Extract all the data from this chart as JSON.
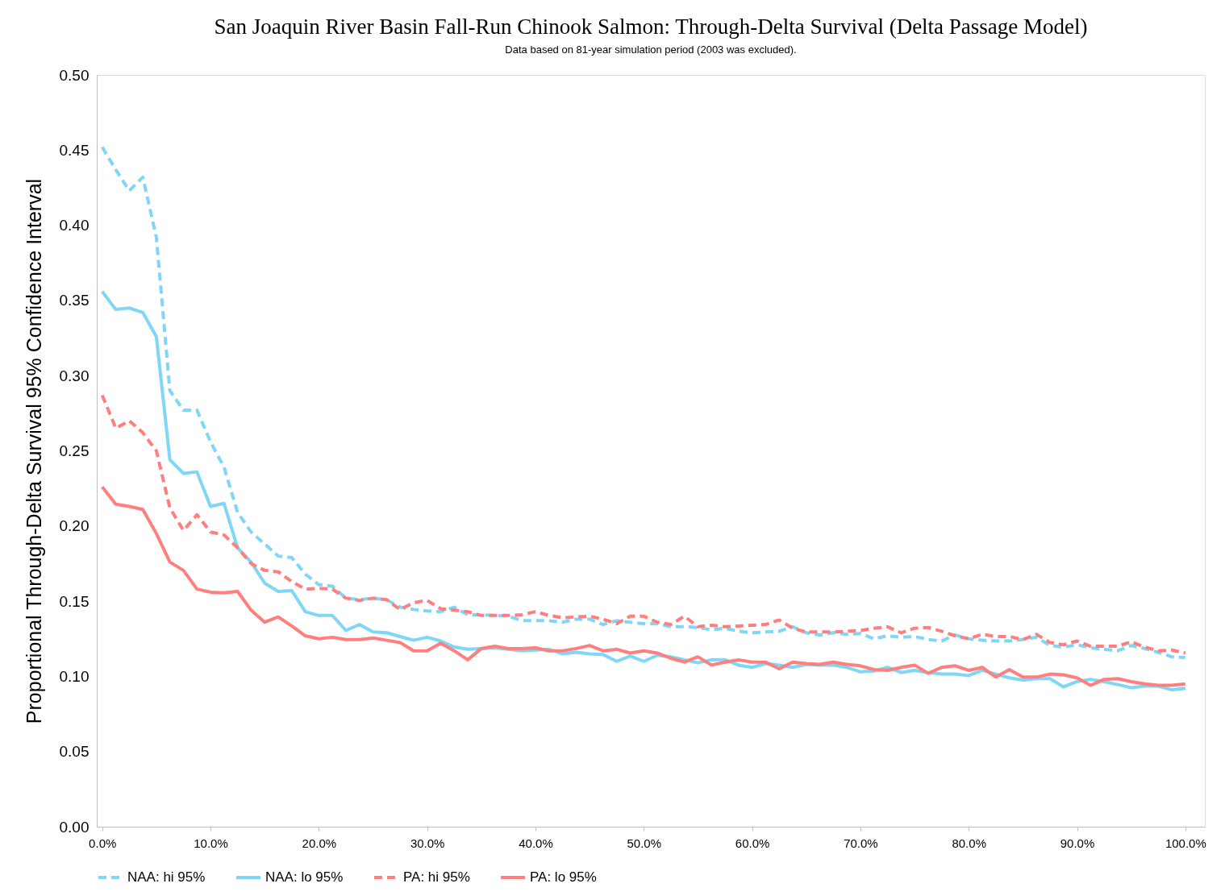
{
  "chart_data": {
    "type": "line",
    "title": "San Joaquin River Basin Fall-Run Chinook Salmon: Through-Delta Survival (Delta Passage Model)",
    "subtitle": "Data based on 81-year simulation period (2003 was excluded).",
    "ylabel": "Proportional Through-Delta Survival 95% Confidence Interval",
    "x": [
      0,
      1.25,
      2.5,
      3.75,
      5,
      6.25,
      7.5,
      8.75,
      10,
      11.25,
      12.5,
      13.75,
      15,
      16.25,
      17.5,
      18.75,
      20,
      21.25,
      22.5,
      23.75,
      25,
      26.25,
      27.5,
      28.75,
      30,
      31.25,
      32.5,
      33.75,
      35,
      36.25,
      37.5,
      38.75,
      40,
      41.25,
      42.5,
      43.75,
      45,
      46.25,
      47.5,
      48.75,
      50,
      51.25,
      52.5,
      53.75,
      55,
      56.25,
      57.5,
      58.75,
      60,
      61.25,
      62.5,
      63.75,
      65,
      66.25,
      67.5,
      68.75,
      70,
      71.25,
      72.5,
      73.75,
      75,
      76.25,
      77.5,
      78.75,
      80,
      81.25,
      82.5,
      83.75,
      85,
      86.25,
      87.5,
      88.75,
      90,
      91.25,
      92.5,
      93.75,
      95,
      96.25,
      97.5,
      98.75,
      100
    ],
    "series": [
      {
        "name": "NAA: hi 95%",
        "color": "#7fd6f5",
        "line_style": "dashed",
        "values": [
          0.452,
          0.437,
          0.423,
          0.432,
          0.392,
          0.29,
          0.277,
          0.277,
          0.256,
          0.239,
          0.209,
          0.196,
          0.188,
          0.18,
          0.179,
          0.168,
          0.161,
          0.16,
          0.152,
          0.151,
          0.152,
          0.151,
          0.146,
          0.1445,
          0.1435,
          0.143,
          0.146,
          0.141,
          0.141,
          0.1405,
          0.14,
          0.137,
          0.137,
          0.137,
          0.136,
          0.138,
          0.138,
          0.1345,
          0.137,
          0.136,
          0.135,
          0.135,
          0.133,
          0.133,
          0.1325,
          0.131,
          0.132,
          0.13,
          0.129,
          0.1295,
          0.13,
          0.133,
          0.129,
          0.1275,
          0.129,
          0.128,
          0.1285,
          0.125,
          0.127,
          0.126,
          0.1265,
          0.1245,
          0.1235,
          0.1275,
          0.125,
          0.124,
          0.1235,
          0.1235,
          0.1245,
          0.126,
          0.1205,
          0.1195,
          0.121,
          0.119,
          0.118,
          0.117,
          0.1205,
          0.1185,
          0.116,
          0.113,
          0.1125
        ]
      },
      {
        "name": "NAA: lo 95%",
        "color": "#7fd6f5",
        "line_style": "solid",
        "values": [
          0.356,
          0.344,
          0.345,
          0.342,
          0.326,
          0.244,
          0.235,
          0.236,
          0.213,
          0.215,
          0.1855,
          0.176,
          0.162,
          0.1565,
          0.157,
          0.143,
          0.1405,
          0.1405,
          0.1305,
          0.1345,
          0.1295,
          0.129,
          0.1265,
          0.124,
          0.126,
          0.1235,
          0.1195,
          0.118,
          0.1185,
          0.119,
          0.118,
          0.117,
          0.1175,
          0.118,
          0.115,
          0.116,
          0.115,
          0.1145,
          0.11,
          0.1135,
          0.11,
          0.114,
          0.113,
          0.111,
          0.109,
          0.111,
          0.111,
          0.1075,
          0.106,
          0.1085,
          0.1075,
          0.106,
          0.108,
          0.1075,
          0.1075,
          0.106,
          0.103,
          0.1035,
          0.106,
          0.1025,
          0.104,
          0.1025,
          0.1015,
          0.1015,
          0.1005,
          0.104,
          0.1015,
          0.099,
          0.0975,
          0.0985,
          0.0985,
          0.093,
          0.0965,
          0.098,
          0.0965,
          0.0945,
          0.0925,
          0.0935,
          0.0935,
          0.091,
          0.092
        ]
      },
      {
        "name": "PA: hi 95%",
        "color": "#ff7f7f",
        "line_style": "dashed",
        "values": [
          0.287,
          0.265,
          0.27,
          0.262,
          0.25,
          0.212,
          0.197,
          0.2075,
          0.196,
          0.194,
          0.1855,
          0.175,
          0.1705,
          0.1695,
          0.163,
          0.158,
          0.1585,
          0.158,
          0.152,
          0.1505,
          0.152,
          0.151,
          0.1445,
          0.149,
          0.1505,
          0.145,
          0.144,
          0.143,
          0.1405,
          0.1405,
          0.1405,
          0.141,
          0.143,
          0.1405,
          0.139,
          0.1395,
          0.14,
          0.138,
          0.135,
          0.14,
          0.14,
          0.136,
          0.1345,
          0.14,
          0.133,
          0.134,
          0.133,
          0.1335,
          0.134,
          0.1345,
          0.1375,
          0.132,
          0.1295,
          0.1295,
          0.1295,
          0.13,
          0.1305,
          0.132,
          0.133,
          0.129,
          0.132,
          0.1325,
          0.13,
          0.127,
          0.125,
          0.128,
          0.1265,
          0.1265,
          0.1245,
          0.128,
          0.1225,
          0.121,
          0.1235,
          0.12,
          0.12,
          0.12,
          0.123,
          0.1195,
          0.117,
          0.1175,
          0.1155
        ]
      },
      {
        "name": "PA: lo 95%",
        "color": "#ff7f7f",
        "line_style": "solid",
        "values": [
          0.226,
          0.2145,
          0.213,
          0.211,
          0.195,
          0.176,
          0.1705,
          0.158,
          0.156,
          0.1555,
          0.1565,
          0.144,
          0.136,
          0.1395,
          0.1335,
          0.127,
          0.125,
          0.126,
          0.1245,
          0.1245,
          0.1255,
          0.124,
          0.1225,
          0.117,
          0.117,
          0.122,
          0.117,
          0.111,
          0.1185,
          0.12,
          0.1185,
          0.1185,
          0.119,
          0.117,
          0.117,
          0.1185,
          0.1205,
          0.117,
          0.118,
          0.1155,
          0.117,
          0.1155,
          0.112,
          0.1095,
          0.113,
          0.1075,
          0.1095,
          0.111,
          0.1095,
          0.1095,
          0.105,
          0.1095,
          0.1085,
          0.108,
          0.1095,
          0.108,
          0.107,
          0.1045,
          0.104,
          0.106,
          0.1075,
          0.102,
          0.106,
          0.107,
          0.104,
          0.106,
          0.0995,
          0.1045,
          0.0995,
          0.0995,
          0.1015,
          0.101,
          0.099,
          0.094,
          0.098,
          0.0985,
          0.0965,
          0.095,
          0.094,
          0.094,
          0.095
        ]
      }
    ],
    "xlim": [
      -0.5,
      101.8
    ],
    "xticks": [
      {
        "value": 0,
        "label": "0.0%"
      },
      {
        "value": 10,
        "label": "10.0%"
      },
      {
        "value": 20,
        "label": "20.0%"
      },
      {
        "value": 30,
        "label": "30.0%"
      },
      {
        "value": 40,
        "label": "40.0%"
      },
      {
        "value": 50,
        "label": "50.0%"
      },
      {
        "value": 60,
        "label": "60.0%"
      },
      {
        "value": 70,
        "label": "70.0%"
      },
      {
        "value": 80,
        "label": "80.0%"
      },
      {
        "value": 90,
        "label": "90.0%"
      },
      {
        "value": 100,
        "label": "100.0%"
      }
    ],
    "ylim": [
      0,
      0.5
    ],
    "yticks": [
      {
        "value": 0,
        "label": "0.00"
      },
      {
        "value": 0.05,
        "label": "0.05"
      },
      {
        "value": 0.1,
        "label": "0.10"
      },
      {
        "value": 0.15,
        "label": "0.15"
      },
      {
        "value": 0.2,
        "label": "0.20"
      },
      {
        "value": 0.25,
        "label": "0.25"
      },
      {
        "value": 0.3,
        "label": "0.30"
      },
      {
        "value": 0.35,
        "label": "0.35"
      },
      {
        "value": 0.4,
        "label": "0.40"
      },
      {
        "value": 0.45,
        "label": "0.45"
      },
      {
        "value": 0.5,
        "label": "0.50"
      }
    ],
    "grid": false,
    "legend": "bottom"
  }
}
